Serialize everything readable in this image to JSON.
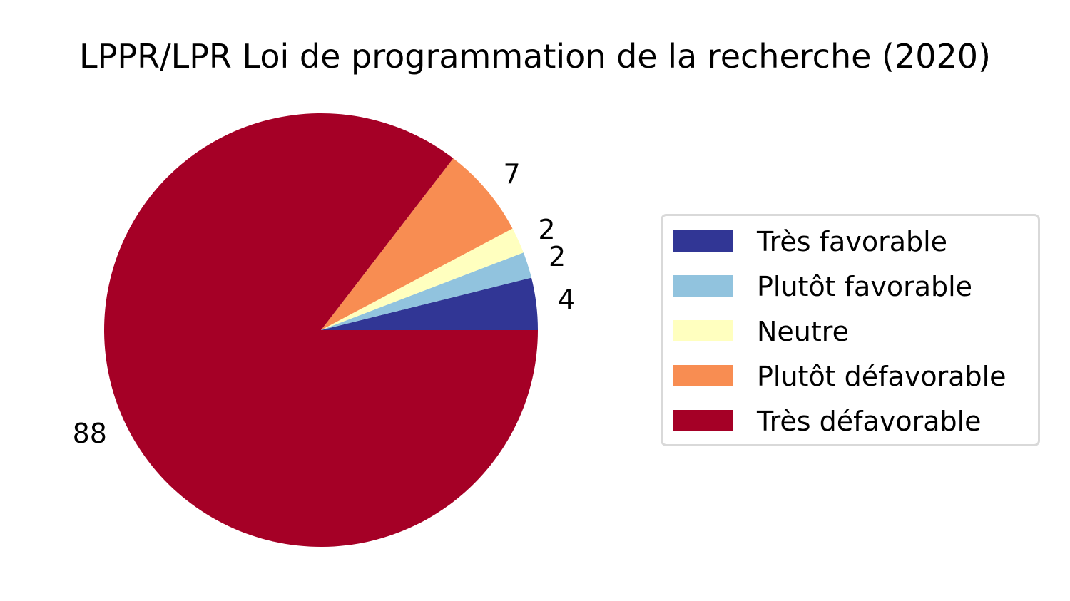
{
  "chart_data": {
    "type": "pie",
    "title": "LPPR/LPR Loi de programmation de la recherche (2020)",
    "categories": [
      "Très favorable",
      "Plutôt favorable",
      "Neutre",
      "Plutôt défavorable",
      "Très défavorable"
    ],
    "values": [
      4,
      2,
      2,
      7,
      88
    ],
    "labels": [
      "4",
      "2",
      "2",
      "7",
      "88"
    ],
    "colors": [
      "#313695",
      "#91c3de",
      "#ffffbf",
      "#f88d52",
      "#a50026"
    ],
    "start_angle_deg": 0,
    "direction": "counterclockwise",
    "legend_placement": "right"
  }
}
